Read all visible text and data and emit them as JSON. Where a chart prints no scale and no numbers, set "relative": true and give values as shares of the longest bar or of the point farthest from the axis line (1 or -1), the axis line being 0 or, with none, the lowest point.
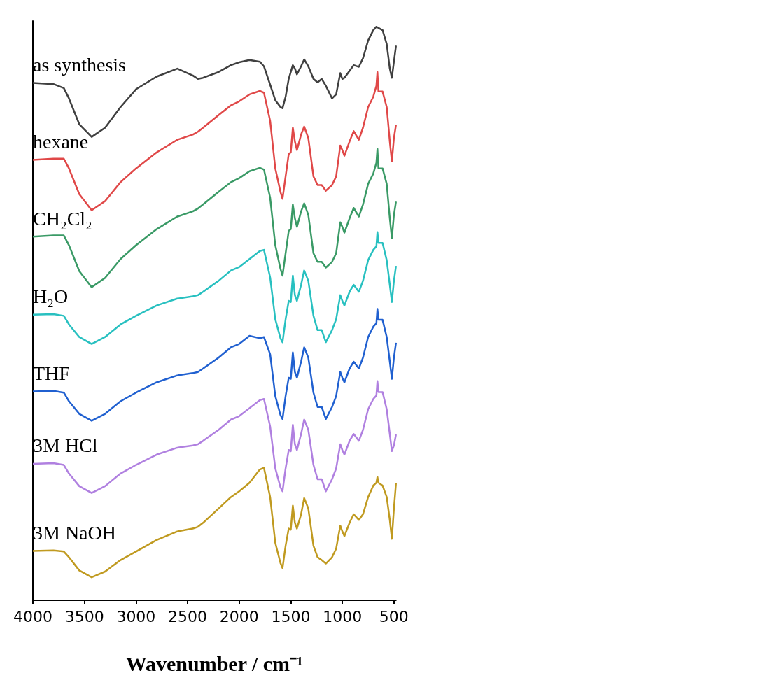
{
  "chart_data": {
    "type": "line",
    "relative": true,
    "xlabel": "Wavenumber / cm⁻¹",
    "xlim": [
      4000,
      480
    ],
    "xticks": [
      4000,
      3500,
      3000,
      2500,
      2000,
      1500,
      1000,
      500
    ],
    "grid": false,
    "x": [
      4000,
      3800,
      3700,
      3650,
      3550,
      3430,
      3300,
      3150,
      3000,
      2800,
      2600,
      2450,
      2400,
      2350,
      2200,
      2080,
      2000,
      1900,
      1800,
      1760,
      1700,
      1650,
      1600,
      1580,
      1550,
      1520,
      1500,
      1480,
      1460,
      1440,
      1400,
      1370,
      1330,
      1280,
      1240,
      1200,
      1160,
      1100,
      1060,
      1020,
      1000,
      980,
      930,
      890,
      840,
      800,
      750,
      700,
      670,
      660,
      650,
      610,
      570,
      540,
      520,
      500,
      480
    ],
    "series": [
      {
        "name": "as synthesis",
        "color": "#404040",
        "values": [
          0.902,
          0.9,
          0.893,
          0.875,
          0.83,
          0.808,
          0.824,
          0.86,
          0.891,
          0.913,
          0.927,
          0.915,
          0.909,
          0.911,
          0.921,
          0.933,
          0.938,
          0.942,
          0.939,
          0.931,
          0.899,
          0.872,
          0.86,
          0.858,
          0.878,
          0.909,
          0.921,
          0.933,
          0.927,
          0.917,
          0.931,
          0.943,
          0.931,
          0.909,
          0.903,
          0.909,
          0.897,
          0.875,
          0.882,
          0.919,
          0.909,
          0.911,
          0.923,
          0.933,
          0.93,
          0.945,
          0.976,
          0.994,
          1,
          0.999,
          0.998,
          0.994,
          0.97,
          0.927,
          0.911,
          0.939,
          0.967
        ]
      },
      {
        "name": "hexane",
        "color": "#e04848",
        "values": [
          0.768,
          0.77,
          0.77,
          0.753,
          0.708,
          0.68,
          0.696,
          0.729,
          0.753,
          0.781,
          0.803,
          0.812,
          0.817,
          0.824,
          0.846,
          0.863,
          0.87,
          0.882,
          0.888,
          0.885,
          0.836,
          0.753,
          0.712,
          0.7,
          0.739,
          0.778,
          0.781,
          0.824,
          0.8,
          0.785,
          0.812,
          0.826,
          0.806,
          0.739,
          0.724,
          0.724,
          0.714,
          0.724,
          0.739,
          0.793,
          0.785,
          0.775,
          0.8,
          0.818,
          0.803,
          0.824,
          0.86,
          0.878,
          0.897,
          0.921,
          0.887,
          0.887,
          0.86,
          0.8,
          0.765,
          0.806,
          0.829
        ]
      },
      {
        "name": "CH₂Cl₂",
        "color": "#3a9a66",
        "values": [
          0.634,
          0.636,
          0.636,
          0.619,
          0.574,
          0.546,
          0.562,
          0.595,
          0.619,
          0.647,
          0.669,
          0.678,
          0.683,
          0.69,
          0.712,
          0.729,
          0.736,
          0.748,
          0.754,
          0.751,
          0.702,
          0.619,
          0.578,
          0.566,
          0.605,
          0.644,
          0.647,
          0.69,
          0.666,
          0.651,
          0.678,
          0.692,
          0.672,
          0.605,
          0.59,
          0.59,
          0.58,
          0.59,
          0.605,
          0.659,
          0.651,
          0.641,
          0.666,
          0.684,
          0.669,
          0.69,
          0.726,
          0.744,
          0.763,
          0.787,
          0.753,
          0.753,
          0.726,
          0.666,
          0.631,
          0.672,
          0.695
        ]
      },
      {
        "name": "H₂O",
        "color": "#28c0c0",
        "values": [
          0.498,
          0.499,
          0.496,
          0.481,
          0.459,
          0.447,
          0.459,
          0.481,
          0.496,
          0.514,
          0.526,
          0.53,
          0.532,
          0.538,
          0.557,
          0.575,
          0.581,
          0.595,
          0.609,
          0.611,
          0.563,
          0.49,
          0.457,
          0.45,
          0.49,
          0.522,
          0.52,
          0.566,
          0.532,
          0.522,
          0.55,
          0.575,
          0.557,
          0.496,
          0.471,
          0.471,
          0.45,
          0.471,
          0.49,
          0.532,
          0.522,
          0.514,
          0.538,
          0.55,
          0.538,
          0.557,
          0.593,
          0.611,
          0.617,
          0.642,
          0.623,
          0.623,
          0.593,
          0.55,
          0.52,
          0.557,
          0.583
        ]
      },
      {
        "name": "THF",
        "color": "#2060d0",
        "values": [
          0.364,
          0.365,
          0.362,
          0.347,
          0.325,
          0.313,
          0.325,
          0.347,
          0.362,
          0.38,
          0.392,
          0.396,
          0.398,
          0.404,
          0.423,
          0.441,
          0.447,
          0.461,
          0.457,
          0.459,
          0.429,
          0.356,
          0.323,
          0.316,
          0.356,
          0.388,
          0.386,
          0.432,
          0.398,
          0.388,
          0.416,
          0.441,
          0.423,
          0.362,
          0.337,
          0.337,
          0.316,
          0.337,
          0.356,
          0.398,
          0.388,
          0.38,
          0.404,
          0.416,
          0.404,
          0.423,
          0.459,
          0.477,
          0.483,
          0.508,
          0.489,
          0.489,
          0.459,
          0.416,
          0.386,
          0.423,
          0.449
        ]
      },
      {
        "name": "3M HCl",
        "color": "#b080e0",
        "values": [
          0.238,
          0.239,
          0.236,
          0.221,
          0.199,
          0.187,
          0.199,
          0.221,
          0.236,
          0.254,
          0.266,
          0.27,
          0.272,
          0.278,
          0.297,
          0.315,
          0.321,
          0.335,
          0.349,
          0.351,
          0.303,
          0.23,
          0.197,
          0.19,
          0.23,
          0.262,
          0.26,
          0.306,
          0.272,
          0.262,
          0.29,
          0.315,
          0.297,
          0.236,
          0.211,
          0.211,
          0.19,
          0.211,
          0.23,
          0.272,
          0.262,
          0.254,
          0.278,
          0.29,
          0.278,
          0.297,
          0.333,
          0.351,
          0.357,
          0.382,
          0.363,
          0.363,
          0.333,
          0.29,
          0.26,
          0.27,
          0.289
        ]
      },
      {
        "name": "3M NaOH",
        "color": "#c09a20",
        "values": [
          0.086,
          0.087,
          0.085,
          0.075,
          0.052,
          0.04,
          0.05,
          0.07,
          0.085,
          0.105,
          0.12,
          0.125,
          0.128,
          0.135,
          0.16,
          0.18,
          0.19,
          0.205,
          0.228,
          0.231,
          0.18,
          0.1,
          0.065,
          0.056,
          0.095,
          0.125,
          0.123,
          0.165,
          0.135,
          0.125,
          0.15,
          0.178,
          0.16,
          0.095,
          0.075,
          0.07,
          0.064,
          0.075,
          0.09,
          0.13,
          0.12,
          0.112,
          0.135,
          0.15,
          0.14,
          0.15,
          0.18,
          0.2,
          0.205,
          0.215,
          0.205,
          0.2,
          0.18,
          0.14,
          0.107,
          0.16,
          0.204
        ]
      }
    ]
  }
}
